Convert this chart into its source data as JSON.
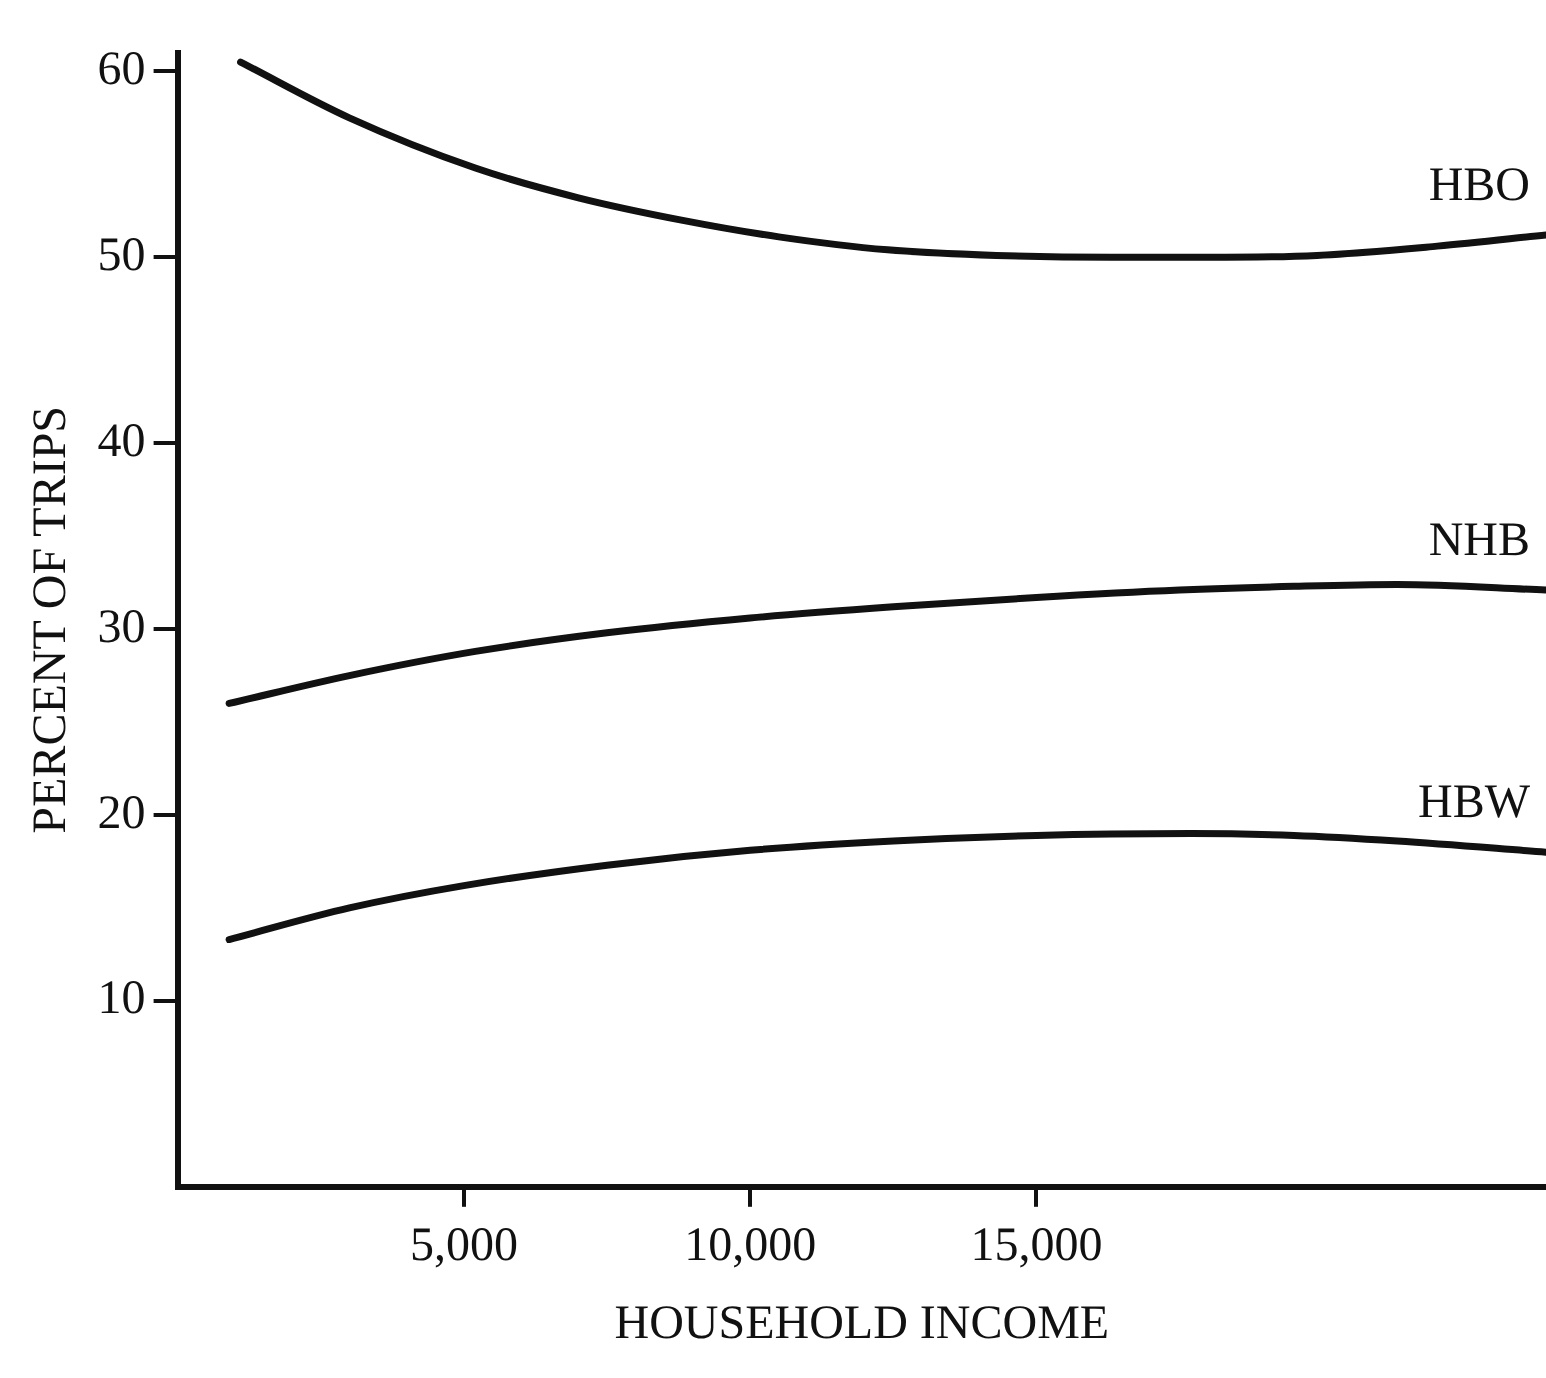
{
  "chart_data": {
    "type": "line",
    "xlabel": "HOUSEHOLD INCOME",
    "ylabel": "PERCENT OF TRIPS",
    "xlim": [
      0,
      23900
    ],
    "ylim": [
      0,
      61
    ],
    "xticks": [
      {
        "value": 5000,
        "label": "5,000"
      },
      {
        "value": 10000,
        "label": "10,000"
      },
      {
        "value": 15000,
        "label": "15,000"
      }
    ],
    "yticks": [
      10,
      20,
      30,
      40,
      50,
      60
    ],
    "grid": false,
    "legend": false,
    "marker": "none",
    "line_style": "solid",
    "series": [
      {
        "name": "HBO",
        "color": "#111111",
        "x": [
          1100,
          3000,
          5200,
          7000,
          8800,
          10500,
          12400,
          14300,
          16300,
          18000,
          19900,
          22000,
          23900
        ],
        "values": [
          60.5,
          57.5,
          54.8,
          53.2,
          52,
          51.1,
          50.4,
          50.1,
          50,
          50,
          50.1,
          50.6,
          51.2
        ]
      },
      {
        "name": "NHB",
        "color": "#111111",
        "x": [
          900,
          3000,
          5200,
          7500,
          10000,
          12500,
          15000,
          17500,
          19500,
          21300,
          23900
        ],
        "values": [
          26,
          27.5,
          28.8,
          29.8,
          30.6,
          31.2,
          31.7,
          32.1,
          32.3,
          32.4,
          32.1
        ]
      },
      {
        "name": "HBW",
        "color": "#111111",
        "x": [
          900,
          3000,
          5000,
          7500,
          10000,
          12500,
          15000,
          17700,
          19500,
          21300,
          23900
        ],
        "values": [
          13.3,
          15,
          16.2,
          17.3,
          18.1,
          18.6,
          18.9,
          19,
          18.9,
          18.6,
          18
        ]
      }
    ]
  }
}
